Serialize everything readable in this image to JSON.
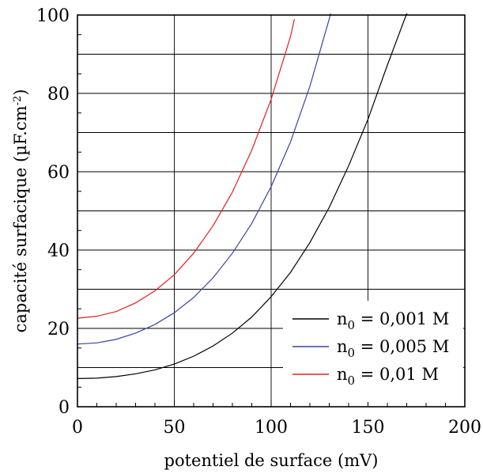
{
  "chart_data": {
    "type": "line",
    "xlabel": "potentiel de surface (mV)",
    "ylabel": "capacité surfacique (µF.cm",
    "ylabel_sup": "-2",
    "ylabel_end": ")",
    "xlim": [
      0,
      200
    ],
    "ylim": [
      0,
      100
    ],
    "xticks": [
      0,
      50,
      100,
      150,
      200
    ],
    "yticks": [
      0,
      20,
      40,
      60,
      80,
      100
    ],
    "xtick_labels": [
      "0",
      "50",
      "100",
      "150",
      "200"
    ],
    "ytick_labels": [
      "0",
      "20",
      "40",
      "60",
      "80",
      "100"
    ],
    "x_gridlines": [
      50,
      100,
      150
    ],
    "y_gridlines": [
      10,
      20,
      30,
      40,
      50,
      60,
      70,
      80,
      90
    ],
    "grid": true,
    "legend_position": "bottom-right",
    "series": [
      {
        "name_base": "n",
        "name_sub": "0",
        "name_rest": " = 0,001 M",
        "color": "#000000",
        "x": [
          0,
          10,
          20,
          30,
          40,
          50,
          60,
          70,
          80,
          90,
          100,
          110,
          120,
          130,
          140,
          150,
          160,
          170,
          173
        ],
        "y": [
          7.2,
          7.3,
          7.7,
          8.4,
          9.4,
          10.9,
          12.9,
          15.5,
          18.8,
          22.9,
          28.1,
          34.3,
          41.9,
          50.9,
          61.5,
          73.4,
          87.2,
          100.4,
          101
        ]
      },
      {
        "name_base": "n",
        "name_sub": "0",
        "name_rest": " = 0,005 M",
        "color": "#3a44a0",
        "x": [
          0,
          10,
          20,
          30,
          40,
          50,
          60,
          70,
          80,
          90,
          100,
          110,
          120,
          130,
          131
        ],
        "y": [
          16,
          16.3,
          17.2,
          18.8,
          21.0,
          24.0,
          27.9,
          32.9,
          39.2,
          46.8,
          56.2,
          67.6,
          81.8,
          99.0,
          101
        ]
      },
      {
        "name_base": "n",
        "name_sub": "0",
        "name_rest": " = 0,01 M",
        "color": "#e02020",
        "x": [
          0,
          10,
          20,
          30,
          40,
          50,
          60,
          70,
          80,
          90,
          100,
          110,
          112
        ],
        "y": [
          22.6,
          23.1,
          24.3,
          26.5,
          29.6,
          33.7,
          39.2,
          46.2,
          54.8,
          65.5,
          78.5,
          94.5,
          99
        ]
      }
    ]
  }
}
